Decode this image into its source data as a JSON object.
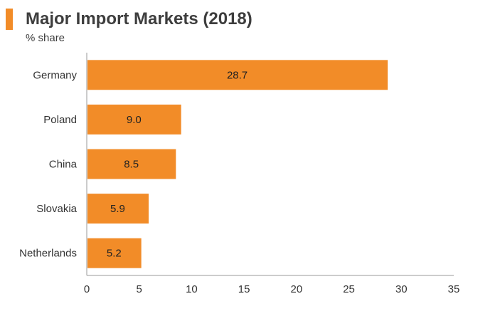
{
  "header": {
    "title": "Major Import Markets (2018)",
    "subtitle": "% share"
  },
  "colors": {
    "accent": "#f28c28",
    "bar": "#f28c28",
    "axis": "#999999",
    "text": "#333333"
  },
  "chart_data": {
    "type": "bar",
    "orientation": "horizontal",
    "title": "Major Import Markets (2018)",
    "subtitle": "% share",
    "categories": [
      "Germany",
      "Poland",
      "China",
      "Slovakia",
      "Netherlands"
    ],
    "values": [
      28.7,
      9.0,
      8.5,
      5.9,
      5.2
    ],
    "value_labels": [
      "28.7",
      "9.0",
      "8.5",
      "5.9",
      "5.2"
    ],
    "xlim": [
      0,
      35
    ],
    "x_ticks": [
      0,
      5,
      10,
      15,
      20,
      25,
      30,
      35
    ],
    "xlabel": "",
    "ylabel": "",
    "grid": false,
    "legend": "none"
  }
}
